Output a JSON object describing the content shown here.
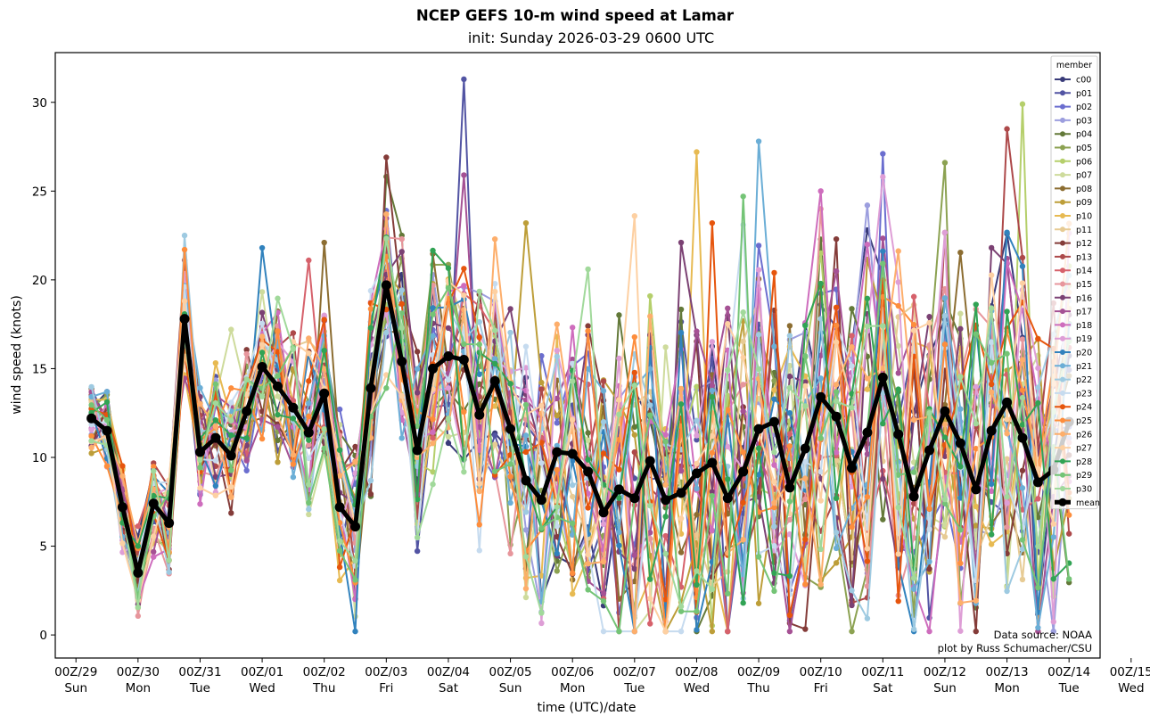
{
  "chart_data": {
    "type": "line",
    "title": "NCEP GEFS 10-m wind speed at Lamar",
    "subtitle": "init: Sunday 2026-03-29 0600 UTC",
    "xlabel": "time (UTC)/date",
    "ylabel": "wind speed (knots)",
    "ylim": [
      -1.3,
      32.8
    ],
    "xlim_hours_from_00Z29": [
      -8,
      396
    ],
    "y_ticks": [
      0,
      5,
      10,
      15,
      20,
      25,
      30
    ],
    "x_ticks": [
      {
        "hour": 0,
        "label1": "00Z/29",
        "label2": "Sun"
      },
      {
        "hour": 24,
        "label1": "00Z/30",
        "label2": "Mon"
      },
      {
        "hour": 48,
        "label1": "00Z/31",
        "label2": "Tue"
      },
      {
        "hour": 72,
        "label1": "00Z/01",
        "label2": "Wed"
      },
      {
        "hour": 96,
        "label1": "00Z/02",
        "label2": "Thu"
      },
      {
        "hour": 120,
        "label1": "00Z/03",
        "label2": "Fri"
      },
      {
        "hour": 144,
        "label1": "00Z/04",
        "label2": "Sat"
      },
      {
        "hour": 168,
        "label1": "00Z/05",
        "label2": "Sun"
      },
      {
        "hour": 192,
        "label1": "00Z/06",
        "label2": "Mon"
      },
      {
        "hour": 216,
        "label1": "00Z/07",
        "label2": "Tue"
      },
      {
        "hour": 240,
        "label1": "00Z/08",
        "label2": "Wed"
      },
      {
        "hour": 264,
        "label1": "00Z/09",
        "label2": "Thu"
      },
      {
        "hour": 288,
        "label1": "00Z/10",
        "label2": "Fri"
      },
      {
        "hour": 312,
        "label1": "00Z/11",
        "label2": "Sat"
      },
      {
        "hour": 336,
        "label1": "00Z/12",
        "label2": "Sun"
      },
      {
        "hour": 360,
        "label1": "00Z/13",
        "label2": "Mon"
      },
      {
        "hour": 384,
        "label1": "00Z/14",
        "label2": "Tue"
      },
      {
        "hour": 408,
        "label1": "00Z/15",
        "label2": "Wed"
      }
    ],
    "x_start_hour": 6,
    "x_step_hours": 6,
    "grid": false,
    "legend": {
      "title": "member",
      "placement": "top-right"
    },
    "credits": [
      "Data source: NOAA",
      "plot by Russ Schumacher/CSU"
    ],
    "mean": {
      "name": "mean",
      "color": "#000000",
      "values": [
        12.2,
        11.5,
        7.2,
        3.5,
        7.4,
        6.3,
        17.8,
        10.3,
        11.1,
        10.1,
        12.6,
        15.1,
        14.0,
        12.8,
        11.4,
        13.6,
        7.2,
        6.1,
        13.9,
        19.7,
        15.4,
        10.4,
        15.0,
        15.7,
        15.5,
        12.4,
        14.3,
        11.6,
        8.7,
        7.6,
        10.3,
        10.2,
        9.2,
        6.9,
        8.2,
        7.7,
        9.8,
        7.6,
        8.0,
        9.1,
        9.7,
        7.7,
        9.2,
        11.6,
        12.0,
        8.3,
        10.5,
        13.4,
        12.3,
        9.4,
        11.4,
        14.5,
        11.3,
        7.8,
        10.4,
        12.6,
        10.8,
        8.2,
        11.5,
        13.1,
        11.1,
        8.6,
        9.3,
        12.0
      ]
    },
    "members": [
      {
        "name": "c00",
        "color": "#393b79",
        "peak": {
          "index": 50,
          "value": 22.8
        }
      },
      {
        "name": "p01",
        "color": "#5254a3",
        "peak": {
          "index": 24,
          "value": 31.3
        }
      },
      {
        "name": "p02",
        "color": "#6b6ecf",
        "peak": {
          "index": 51,
          "value": 27.1
        }
      },
      {
        "name": "p03",
        "color": "#9c9ede",
        "peak": {
          "index": 50,
          "value": 24.2
        }
      },
      {
        "name": "p04",
        "color": "#637939",
        "peak": {
          "index": 20,
          "value": 22.5
        }
      },
      {
        "name": "p05",
        "color": "#8ca252",
        "peak": {
          "index": 55,
          "value": 26.6
        }
      },
      {
        "name": "p06",
        "color": "#b5cf6b",
        "peak": {
          "index": 60,
          "value": 29.9
        }
      },
      {
        "name": "p07",
        "color": "#cedb9c",
        "peak": {
          "index": 9,
          "value": 17.2
        }
      },
      {
        "name": "p08",
        "color": "#8c6d31",
        "peak": {
          "index": 15,
          "value": 22.1
        }
      },
      {
        "name": "p09",
        "color": "#bd9e39",
        "peak": {
          "index": 28,
          "value": 23.2
        }
      },
      {
        "name": "p10",
        "color": "#e7ba52",
        "peak": {
          "index": 39,
          "value": 27.2
        }
      },
      {
        "name": "p11",
        "color": "#e7cb94",
        "peak": {
          "index": 19,
          "value": 20.2
        }
      },
      {
        "name": "p12",
        "color": "#843c39",
        "peak": {
          "index": 19,
          "value": 26.9
        }
      },
      {
        "name": "p13",
        "color": "#ad494a",
        "peak": {
          "index": 59,
          "value": 28.5
        }
      },
      {
        "name": "p14",
        "color": "#d6616b",
        "peak": {
          "index": 14,
          "value": 21.1
        }
      },
      {
        "name": "p15",
        "color": "#e7969c",
        "peak": {
          "index": 20,
          "value": 22.3
        }
      },
      {
        "name": "p16",
        "color": "#7b4173",
        "peak": {
          "index": 38,
          "value": 22.1
        }
      },
      {
        "name": "p17",
        "color": "#a55194",
        "peak": {
          "index": 24,
          "value": 25.9
        }
      },
      {
        "name": "p18",
        "color": "#ce6dbd",
        "peak": {
          "index": 47,
          "value": 25.0
        }
      },
      {
        "name": "p19",
        "color": "#de9ed6",
        "peak": {
          "index": 51,
          "value": 25.8
        }
      },
      {
        "name": "p20",
        "color": "#3182bd",
        "peak": {
          "index": 11,
          "value": 21.8
        }
      },
      {
        "name": "p21",
        "color": "#6baed6",
        "peak": {
          "index": 43,
          "value": 27.8
        }
      },
      {
        "name": "p22",
        "color": "#9ecae1",
        "peak": {
          "index": 6,
          "value": 22.5
        }
      },
      {
        "name": "p23",
        "color": "#c6dbef",
        "peak": {
          "index": 42,
          "value": 23.1
        }
      },
      {
        "name": "p24",
        "color": "#e6550d",
        "peak": {
          "index": 40,
          "value": 23.2
        }
      },
      {
        "name": "p25",
        "color": "#fd8d3c",
        "peak": {
          "index": 6,
          "value": 21.7
        }
      },
      {
        "name": "p26",
        "color": "#fdae6b",
        "peak": {
          "index": 19,
          "value": 23.7
        }
      },
      {
        "name": "p27",
        "color": "#fdd0a2",
        "peak": {
          "index": 35,
          "value": 23.6
        }
      },
      {
        "name": "p28",
        "color": "#31a354",
        "peak": {
          "index": 19,
          "value": 22.4
        }
      },
      {
        "name": "p29",
        "color": "#74c476",
        "peak": {
          "index": 42,
          "value": 24.7
        }
      },
      {
        "name": "p30",
        "color": "#a1d99b",
        "peak": {
          "index": 32,
          "value": 20.6
        }
      }
    ]
  }
}
